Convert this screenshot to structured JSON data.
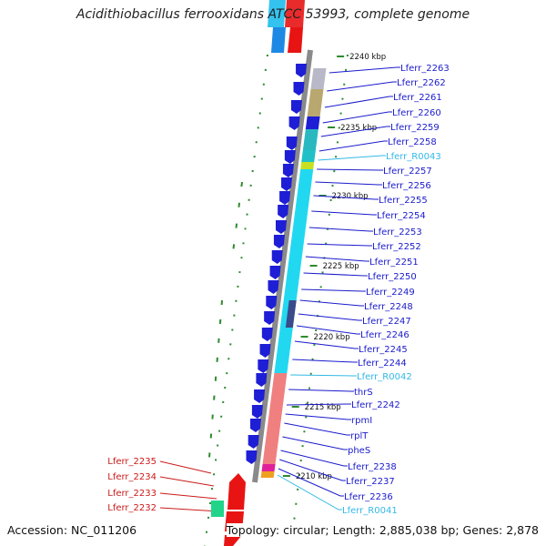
{
  "title": "Acidithiobacillus ferrooxidans ATCC 53993, complete genome",
  "footer": {
    "accession": "Accession: NC_011206",
    "summary": "Topology: circular; Length: 2,885,038 bp; Genes: 2,878"
  },
  "colors": {
    "backbone": "#8a8a8a",
    "cds_forward": "#1e1ed6",
    "cds_reverse": "#e81414",
    "gc_skew": "#2e8b2e",
    "label_gene": "#1a1acc",
    "label_rna": "#33b8e6",
    "label_red": "#cc1a1a"
  },
  "ticks": [
    {
      "label": "2240 kbp",
      "pos": 2240
    },
    {
      "label": "2235 kbp",
      "pos": 2235
    },
    {
      "label": "2230 kbp",
      "pos": 2230
    },
    {
      "label": "2225 kbp",
      "pos": 2225
    },
    {
      "label": "2220 kbp",
      "pos": 2220
    },
    {
      "label": "2215 kbp",
      "pos": 2215
    },
    {
      "label": "2210 kbp",
      "pos": 2210
    }
  ],
  "right_labels": [
    {
      "text": "Lferr_2263",
      "type": "gene"
    },
    {
      "text": "Lferr_2262",
      "type": "gene"
    },
    {
      "text": "Lferr_2261",
      "type": "gene"
    },
    {
      "text": "Lferr_2260",
      "type": "gene"
    },
    {
      "text": "Lferr_2259",
      "type": "gene"
    },
    {
      "text": "Lferr_2258",
      "type": "gene"
    },
    {
      "text": "Lferr_R0043",
      "type": "rna"
    },
    {
      "text": "Lferr_2257",
      "type": "gene"
    },
    {
      "text": "Lferr_2256",
      "type": "gene"
    },
    {
      "text": "Lferr_2255",
      "type": "gene"
    },
    {
      "text": "Lferr_2254",
      "type": "gene"
    },
    {
      "text": "Lferr_2253",
      "type": "gene"
    },
    {
      "text": "Lferr_2252",
      "type": "gene"
    },
    {
      "text": "Lferr_2251",
      "type": "gene"
    },
    {
      "text": "Lferr_2250",
      "type": "gene"
    },
    {
      "text": "Lferr_2249",
      "type": "gene"
    },
    {
      "text": "Lferr_2248",
      "type": "gene"
    },
    {
      "text": "Lferr_2247",
      "type": "gene"
    },
    {
      "text": "Lferr_2246",
      "type": "gene"
    },
    {
      "text": "Lferr_2245",
      "type": "gene"
    },
    {
      "text": "Lferr_2244",
      "type": "gene"
    },
    {
      "text": "Lferr_R0042",
      "type": "rna"
    },
    {
      "text": "thrS",
      "type": "gene"
    },
    {
      "text": "Lferr_2242",
      "type": "gene"
    },
    {
      "text": "rpmI",
      "type": "gene"
    },
    {
      "text": "rplT",
      "type": "gene"
    },
    {
      "text": "pheS",
      "type": "gene"
    },
    {
      "text": "Lferr_2238",
      "type": "gene"
    },
    {
      "text": "Lferr_2237",
      "type": "gene"
    },
    {
      "text": "Lferr_2236",
      "type": "gene"
    },
    {
      "text": "Lferr_R0041",
      "type": "rna"
    }
  ],
  "left_labels": [
    {
      "text": "Lferr_2235",
      "type": "red"
    },
    {
      "text": "Lferr_2234",
      "type": "red"
    },
    {
      "text": "Lferr_2233",
      "type": "red"
    },
    {
      "text": "Lferr_2232",
      "type": "red"
    }
  ]
}
